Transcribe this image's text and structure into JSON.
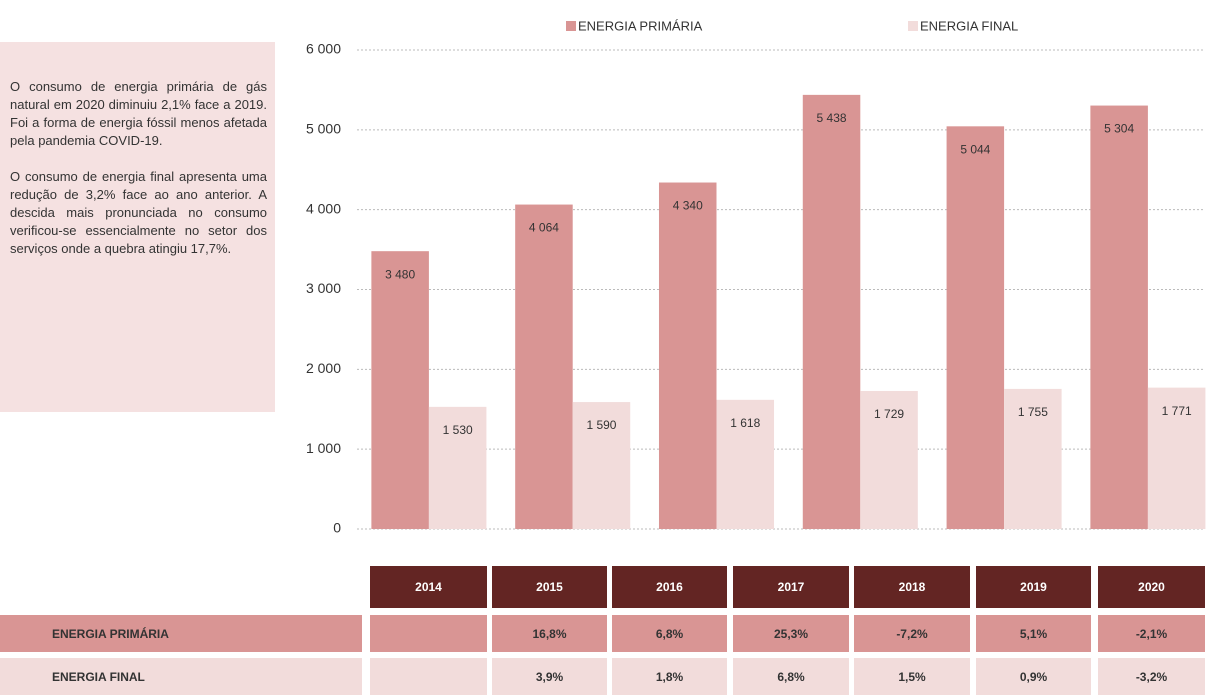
{
  "chart_data": {
    "type": "bar",
    "categories": [
      null,
      null,
      null,
      null,
      null,
      null
    ],
    "series": [
      {
        "name": "ENERGIA PRIMÁRIA",
        "color": "#d99594",
        "values": [
          3480,
          4064,
          4340,
          5438,
          5044,
          5304
        ],
        "value_labels": [
          "3 480",
          "4 064",
          "4 340",
          "5 438",
          "5 044",
          "5 304"
        ]
      },
      {
        "name": "ENERGIA FINAL",
        "color": "#f2dcdb",
        "values": [
          1530,
          1590,
          1618,
          1729,
          1755,
          1771
        ],
        "value_labels": [
          "1 530",
          "1 590",
          "1 618",
          "1 729",
          "1 755",
          "1 771"
        ]
      }
    ],
    "ylim": [
      0,
      6000
    ],
    "yticks": [
      0,
      {
        "value": 1000,
        "label": "1 000"
      },
      {
        "value": 2000,
        "label": "2 000"
      },
      {
        "value": 3000,
        "label": "3 000"
      },
      {
        "value": 4000,
        "label": "4 000"
      },
      {
        "value": 5000,
        "label": "5 000"
      },
      {
        "value": 6000,
        "label": "6 000"
      }
    ],
    "grid": true,
    "legend": "top"
  },
  "note": {
    "paragraphs": [
      "O consumo de energia primária de gás natural em 2020 diminuiu 2,1% face a 2019. Foi a forma de energia fóssil menos afetada pela pandemia COVID-19.",
      "O consumo de energia final apresenta uma redução de 3,2% face ao ano anterior. A descida mais pronunciada no consumo verificou-se essencialmente no setor dos serviços onde a quebra atingiu 17,7%."
    ]
  },
  "table": {
    "header": [
      "2014",
      "2015",
      "2016",
      "2017",
      "2018",
      "2019",
      "2020"
    ],
    "rows": [
      {
        "label": "ENERGIA PRIMÁRIA",
        "cells": [
          "16,8%",
          "6,8%",
          "25,3%",
          "-7,2%",
          "5,1%",
          "-2,1%"
        ]
      },
      {
        "label": "ENERGIA FINAL",
        "cells": [
          "3,9%",
          "1,8%",
          "6,8%",
          "1,5%",
          "0,9%",
          "-3,2%"
        ]
      }
    ]
  }
}
